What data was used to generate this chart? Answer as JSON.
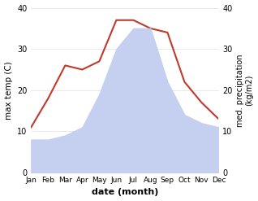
{
  "months": [
    "Jan",
    "Feb",
    "Mar",
    "Apr",
    "May",
    "Jun",
    "Jul",
    "Aug",
    "Sep",
    "Oct",
    "Nov",
    "Dec"
  ],
  "precipitation": [
    8,
    8,
    9,
    11,
    19,
    30,
    35,
    35,
    22,
    14,
    12,
    11
  ],
  "temperature": [
    11,
    18,
    26,
    25,
    27,
    37,
    37,
    35,
    34,
    22,
    17,
    13
  ],
  "precip_color": "#c5cff0",
  "temp_color": "#c0392b",
  "ylim": [
    0,
    40
  ],
  "xlabel": "date (month)",
  "ylabel_left": "max temp (C)",
  "ylabel_right": "med. precipitation\n(kg/m2)",
  "tick_labels_10": [
    0,
    10,
    20,
    30,
    40
  ],
  "bg_color": "#ffffff",
  "spine_color": "#bbbbbb"
}
